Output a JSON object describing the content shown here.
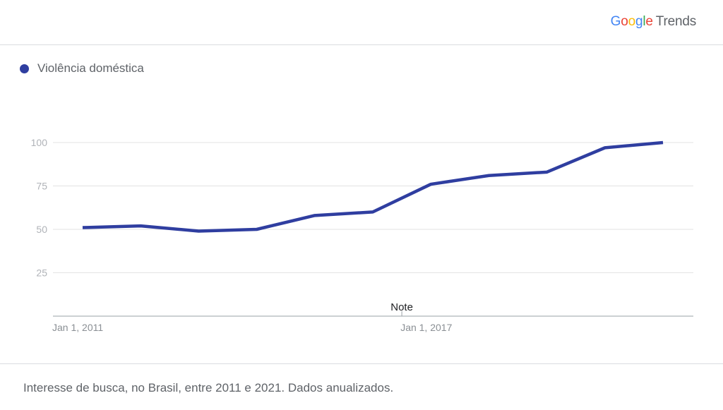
{
  "header": {
    "logo_letters": [
      {
        "ch": "G",
        "color": "#4285f4"
      },
      {
        "ch": "o",
        "color": "#ea4335"
      },
      {
        "ch": "o",
        "color": "#fbbc05"
      },
      {
        "ch": "g",
        "color": "#4285f4"
      },
      {
        "ch": "l",
        "color": "#34a853"
      },
      {
        "ch": "e",
        "color": "#ea4335"
      }
    ],
    "logo_suffix": "Trends"
  },
  "legend": {
    "label": "Violência doméstica",
    "color": "#2f3ea0"
  },
  "chart_data": {
    "type": "line",
    "title": "",
    "xlabel": "",
    "ylabel": "",
    "x": [
      "2011",
      "2012",
      "2013",
      "2014",
      "2015",
      "2016",
      "2017",
      "2018",
      "2019",
      "2020",
      "2021"
    ],
    "series": [
      {
        "name": "Violência doméstica",
        "color": "#2f3ea0",
        "values": [
          51,
          52,
          49,
          50,
          58,
          60,
          76,
          81,
          83,
          97,
          100
        ]
      }
    ],
    "ylim": [
      0,
      100
    ],
    "yticks": [
      25,
      50,
      75,
      100
    ],
    "ytick_labels": [
      "25",
      "50",
      "75",
      "100"
    ],
    "xtick_labels": [
      {
        "at": "2011",
        "label": "Jan 1, 2011"
      },
      {
        "at": "2017",
        "label": "Jan 1, 2017"
      }
    ],
    "annotation": {
      "at": "2016.5",
      "label": "Note"
    },
    "grid": true
  },
  "footer": {
    "caption": "Interesse de busca, no Brasil, entre 2011 e 2021. Dados anualizados."
  }
}
